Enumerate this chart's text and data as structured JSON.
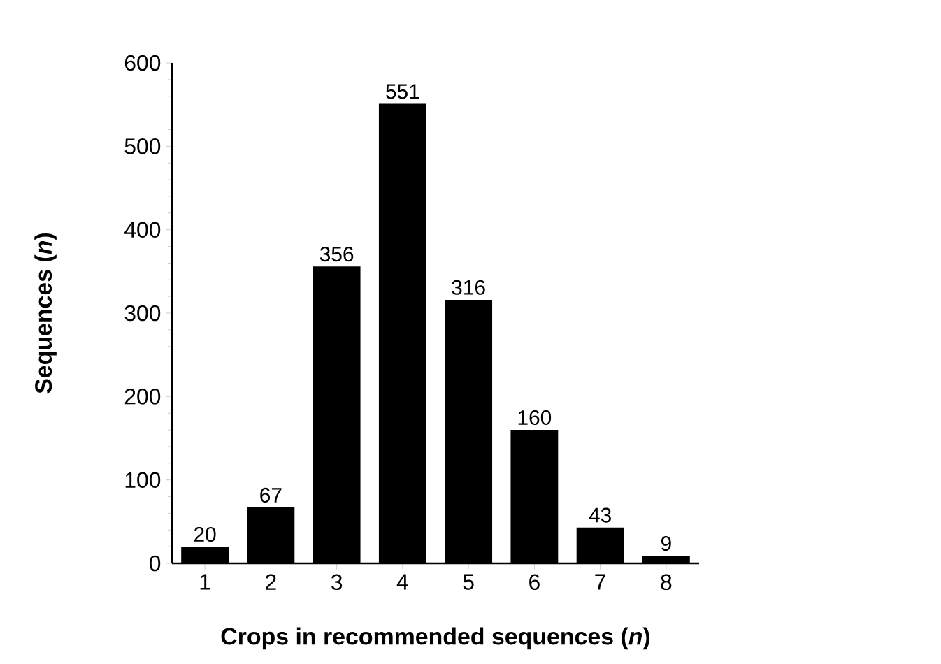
{
  "chart_data": {
    "type": "bar",
    "xlabel": "Crops in recommended sequences (*n*)",
    "ylabel": "Sequences (*n*)",
    "categories": [
      "1",
      "2",
      "3",
      "4",
      "5",
      "6",
      "7",
      "8"
    ],
    "values": [
      20,
      67,
      356,
      551,
      316,
      160,
      43,
      9
    ],
    "color": "#000000",
    "data_labels": true,
    "ylim": [
      0,
      600
    ],
    "yticks": [
      0,
      100,
      200,
      300,
      400,
      500,
      600
    ]
  }
}
